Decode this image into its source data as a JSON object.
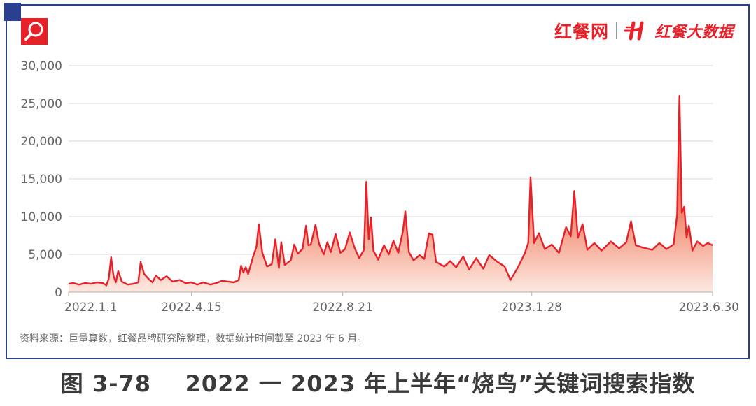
{
  "logo": {
    "primary_text": "红餐网",
    "secondary_text": "红餐大数据"
  },
  "source_note": "资料来源：巨量算数，红餐品牌研究院整理，数据统计时间截至 2023 年 6 月。",
  "caption": "图 3-78    2022 一 2023 年上半年“烧鸟”关键词搜索指数",
  "colors": {
    "brand": "#e6212a",
    "frame": "#2b3f8f",
    "line": "#e6212a",
    "area_top": "#f07a5e",
    "area_bottom": "#fde9e1",
    "grid": "#d9d9d9"
  },
  "icons": [
    "search-icon",
    "logo-mark-icon"
  ],
  "chart_data": {
    "type": "area",
    "title": "",
    "xlabel": "",
    "ylabel": "",
    "ylim": [
      0,
      30000
    ],
    "yticks": [
      0,
      5000,
      10000,
      15000,
      20000,
      25000,
      30000
    ],
    "ytick_labels": [
      "0",
      "5,000",
      "10,000",
      "15,000",
      "20,000",
      "25,000",
      "30,000"
    ],
    "x_range": [
      "2022-01-01",
      "2023-06-30"
    ],
    "x_ticks": [
      "2022-01-01",
      "2022-04-15",
      "2022-08-21",
      "2023-01-28",
      "2023-06-30"
    ],
    "xtick_labels": [
      "2022.1.1",
      "2022.4.15",
      "2022.8.21",
      "2023.1.28",
      "2023.6.30"
    ],
    "grid": "horizontal",
    "legend": "none",
    "series": [
      {
        "points": [
          [
            "2022-01-01",
            1100
          ],
          [
            "2022-01-05",
            1200
          ],
          [
            "2022-01-10",
            1000
          ],
          [
            "2022-01-15",
            1200
          ],
          [
            "2022-01-20",
            1100
          ],
          [
            "2022-01-25",
            1300
          ],
          [
            "2022-01-30",
            1200
          ],
          [
            "2022-02-02",
            900
          ],
          [
            "2022-02-04",
            1800
          ],
          [
            "2022-02-06",
            4600
          ],
          [
            "2022-02-08",
            2200
          ],
          [
            "2022-02-10",
            1300
          ],
          [
            "2022-02-12",
            2800
          ],
          [
            "2022-02-15",
            1400
          ],
          [
            "2022-02-20",
            1000
          ],
          [
            "2022-02-25",
            1100
          ],
          [
            "2022-03-01",
            1300
          ],
          [
            "2022-03-03",
            4000
          ],
          [
            "2022-03-06",
            2400
          ],
          [
            "2022-03-10",
            1700
          ],
          [
            "2022-03-13",
            1300
          ],
          [
            "2022-03-16",
            2200
          ],
          [
            "2022-03-20",
            1600
          ],
          [
            "2022-03-25",
            2100
          ],
          [
            "2022-03-30",
            1400
          ],
          [
            "2022-04-05",
            1600
          ],
          [
            "2022-04-10",
            1200
          ],
          [
            "2022-04-15",
            1300
          ],
          [
            "2022-04-20",
            1000
          ],
          [
            "2022-04-25",
            1300
          ],
          [
            "2022-05-01",
            1000
          ],
          [
            "2022-05-06",
            1200
          ],
          [
            "2022-05-11",
            1500
          ],
          [
            "2022-05-16",
            1400
          ],
          [
            "2022-05-21",
            1300
          ],
          [
            "2022-05-25",
            1600
          ],
          [
            "2022-05-27",
            3500
          ],
          [
            "2022-05-29",
            2600
          ],
          [
            "2022-05-31",
            3300
          ],
          [
            "2022-06-02",
            2400
          ],
          [
            "2022-06-06",
            4600
          ],
          [
            "2022-06-09",
            6000
          ],
          [
            "2022-06-11",
            9000
          ],
          [
            "2022-06-14",
            5200
          ],
          [
            "2022-06-18",
            3400
          ],
          [
            "2022-06-22",
            3700
          ],
          [
            "2022-06-25",
            7000
          ],
          [
            "2022-06-28",
            3200
          ],
          [
            "2022-06-30",
            6600
          ],
          [
            "2022-07-03",
            3600
          ],
          [
            "2022-07-08",
            4200
          ],
          [
            "2022-07-11",
            6300
          ],
          [
            "2022-07-14",
            5100
          ],
          [
            "2022-07-18",
            5700
          ],
          [
            "2022-07-21",
            8800
          ],
          [
            "2022-07-23",
            6200
          ],
          [
            "2022-07-25",
            6300
          ],
          [
            "2022-07-29",
            8900
          ],
          [
            "2022-08-01",
            6400
          ],
          [
            "2022-08-05",
            5000
          ],
          [
            "2022-08-08",
            6600
          ],
          [
            "2022-08-11",
            5300
          ],
          [
            "2022-08-15",
            7700
          ],
          [
            "2022-08-19",
            5200
          ],
          [
            "2022-08-23",
            5700
          ],
          [
            "2022-08-27",
            7900
          ],
          [
            "2022-08-31",
            5900
          ],
          [
            "2022-09-04",
            4500
          ],
          [
            "2022-09-08",
            5600
          ],
          [
            "2022-09-10",
            14600
          ],
          [
            "2022-09-12",
            7000
          ],
          [
            "2022-09-14",
            9900
          ],
          [
            "2022-09-16",
            5500
          ],
          [
            "2022-09-20",
            4300
          ],
          [
            "2022-09-25",
            6200
          ],
          [
            "2022-09-29",
            5000
          ],
          [
            "2022-10-03",
            6800
          ],
          [
            "2022-10-07",
            5200
          ],
          [
            "2022-10-11",
            8100
          ],
          [
            "2022-10-13",
            10700
          ],
          [
            "2022-10-16",
            5300
          ],
          [
            "2022-10-20",
            4200
          ],
          [
            "2022-10-25",
            4900
          ],
          [
            "2022-10-29",
            4400
          ],
          [
            "2022-11-02",
            7800
          ],
          [
            "2022-11-05",
            7600
          ],
          [
            "2022-11-08",
            4000
          ],
          [
            "2022-11-15",
            3400
          ],
          [
            "2022-11-20",
            4100
          ],
          [
            "2022-11-25",
            3300
          ],
          [
            "2022-12-01",
            4700
          ],
          [
            "2022-12-06",
            3000
          ],
          [
            "2022-12-12",
            4500
          ],
          [
            "2022-12-18",
            3100
          ],
          [
            "2022-12-23",
            4900
          ],
          [
            "2022-12-30",
            4000
          ],
          [
            "2023-01-05",
            3400
          ],
          [
            "2023-01-10",
            1600
          ],
          [
            "2023-01-16",
            3200
          ],
          [
            "2023-01-22",
            5100
          ],
          [
            "2023-01-25",
            6500
          ],
          [
            "2023-01-27",
            15200
          ],
          [
            "2023-01-30",
            6500
          ],
          [
            "2023-02-03",
            7800
          ],
          [
            "2023-02-08",
            5700
          ],
          [
            "2023-02-14",
            6300
          ],
          [
            "2023-02-20",
            5200
          ],
          [
            "2023-02-26",
            8600
          ],
          [
            "2023-03-02",
            7400
          ],
          [
            "2023-03-05",
            13400
          ],
          [
            "2023-03-08",
            7200
          ],
          [
            "2023-03-12",
            9000
          ],
          [
            "2023-03-16",
            5600
          ],
          [
            "2023-03-22",
            6500
          ],
          [
            "2023-03-28",
            5500
          ],
          [
            "2023-04-05",
            6700
          ],
          [
            "2023-04-12",
            5800
          ],
          [
            "2023-04-18",
            6600
          ],
          [
            "2023-04-22",
            9400
          ],
          [
            "2023-04-26",
            6200
          ],
          [
            "2023-05-02",
            5900
          ],
          [
            "2023-05-10",
            5600
          ],
          [
            "2023-05-16",
            6500
          ],
          [
            "2023-05-22",
            5700
          ],
          [
            "2023-05-28",
            6300
          ],
          [
            "2023-05-31",
            10300
          ],
          [
            "2023-06-02",
            26000
          ],
          [
            "2023-06-04",
            10500
          ],
          [
            "2023-06-06",
            11300
          ],
          [
            "2023-06-08",
            7200
          ],
          [
            "2023-06-10",
            8800
          ],
          [
            "2023-06-13",
            5500
          ],
          [
            "2023-06-17",
            6700
          ],
          [
            "2023-06-22",
            6100
          ],
          [
            "2023-06-26",
            6500
          ],
          [
            "2023-06-30",
            6200
          ]
        ]
      }
    ]
  }
}
